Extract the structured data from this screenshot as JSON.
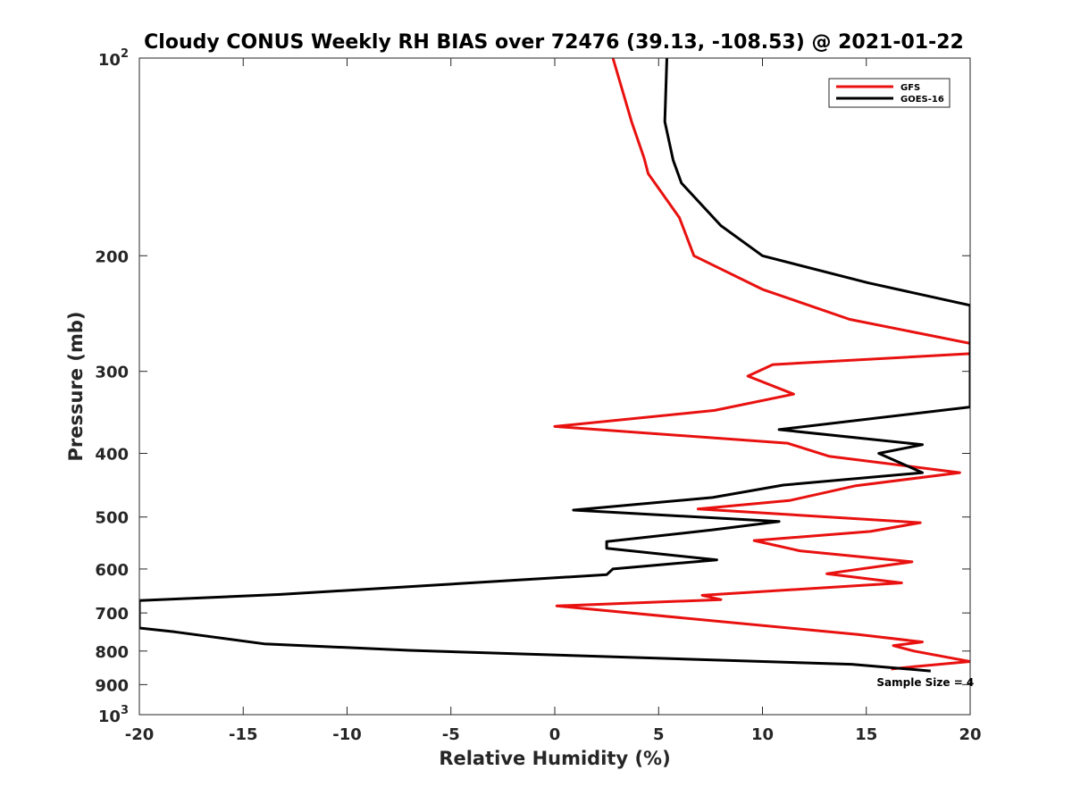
{
  "chart_data": {
    "type": "line",
    "title": "Cloudy CONUS Weekly RH BIAS over 72476 (39.13, -108.53) @ 2021-01-22",
    "xlabel": "Relative Humidity (%)",
    "ylabel": "Pressure (mb)",
    "xlim": [
      -20,
      20
    ],
    "ylim": [
      100,
      1000
    ],
    "yscale": "log",
    "y_reversed": true,
    "x_ticks": [
      "-20",
      "-15",
      "-10",
      "-5",
      "0",
      "5",
      "10",
      "15",
      "20"
    ],
    "y_ticks": [
      {
        "value": 100,
        "base": "10",
        "exp": "2"
      },
      {
        "value": 200,
        "label": "200"
      },
      {
        "value": 300,
        "label": "300"
      },
      {
        "value": 400,
        "label": "400"
      },
      {
        "value": 500,
        "label": "500"
      },
      {
        "value": 600,
        "label": "600"
      },
      {
        "value": 700,
        "label": "700"
      },
      {
        "value": 800,
        "label": "800"
      },
      {
        "value": 900,
        "label": "900"
      },
      {
        "value": 1000,
        "base": "10",
        "exp": "3"
      }
    ],
    "grid": false,
    "legend_position": "top-right",
    "series": [
      {
        "name": "GFS",
        "color": "#e8110f",
        "points": [
          [
            2.8,
            100
          ],
          [
            3.7,
            125
          ],
          [
            4.3,
            142
          ],
          [
            4.5,
            150
          ],
          [
            6.0,
            175
          ],
          [
            6.7,
            200
          ],
          [
            10.0,
            225
          ],
          [
            14.2,
            250
          ],
          [
            20.0,
            272
          ],
          [
            20.0,
            282
          ],
          [
            10.5,
            293
          ],
          [
            9.3,
            305
          ],
          [
            11.5,
            325
          ],
          [
            7.7,
            344
          ],
          [
            0.0,
            364
          ],
          [
            11.2,
            386
          ],
          [
            13.2,
            404
          ],
          [
            19.5,
            428
          ],
          [
            14.5,
            448
          ],
          [
            11.3,
            472
          ],
          [
            6.9,
            486
          ],
          [
            17.6,
            510
          ],
          [
            15.2,
            526
          ],
          [
            9.6,
            543
          ],
          [
            11.8,
            563
          ],
          [
            17.2,
            585
          ],
          [
            13.1,
            610
          ],
          [
            16.7,
            630
          ],
          [
            7.1,
            658
          ],
          [
            8.0,
            668
          ],
          [
            0.1,
            683
          ],
          [
            14.6,
            755
          ],
          [
            17.7,
            775
          ],
          [
            16.3,
            785
          ],
          [
            17.3,
            800
          ],
          [
            20.0,
            830
          ],
          [
            17.3,
            845
          ],
          [
            16.2,
            852
          ]
        ]
      },
      {
        "name": "GOES-16",
        "color": "#000000",
        "points": [
          [
            5.4,
            100
          ],
          [
            5.3,
            125
          ],
          [
            5.7,
            143
          ],
          [
            6.1,
            155
          ],
          [
            8.0,
            180
          ],
          [
            10.0,
            200
          ],
          [
            15.1,
            220
          ],
          [
            20.0,
            238
          ],
          [
            20.0,
            340
          ],
          [
            10.8,
            368
          ],
          [
            17.7,
            388
          ],
          [
            15.6,
            400
          ],
          [
            17.7,
            428
          ],
          [
            11.0,
            447
          ],
          [
            7.6,
            467
          ],
          [
            0.9,
            488
          ],
          [
            10.8,
            508
          ],
          [
            7.6,
            523
          ],
          [
            2.5,
            545
          ],
          [
            2.5,
            558
          ],
          [
            7.8,
            581
          ],
          [
            2.8,
            600
          ],
          [
            2.5,
            612
          ],
          [
            -13.2,
            656
          ],
          [
            -20.0,
            670
          ],
          [
            -20.0,
            738
          ],
          [
            -18.3,
            748
          ],
          [
            -14.0,
            780
          ],
          [
            -7.0,
            798
          ],
          [
            14.3,
            838
          ],
          [
            18.1,
            858
          ]
        ]
      }
    ],
    "annotations": [
      {
        "text": "Sample Size = 4",
        "x": 15.5,
        "y": 905
      }
    ]
  }
}
